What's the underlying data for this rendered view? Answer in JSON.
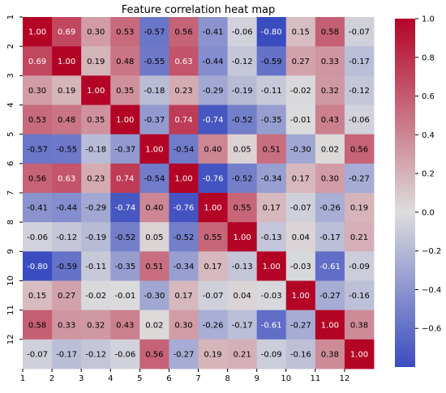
{
  "chart_data": {
    "type": "heatmap",
    "title": "Feature correlation heat map",
    "xlabel": "",
    "ylabel": "",
    "categories": [
      "1",
      "2",
      "3",
      "4",
      "5",
      "6",
      "7",
      "8",
      "9",
      "10",
      "11",
      "12"
    ],
    "values": [
      [
        1.0,
        0.69,
        0.3,
        0.53,
        -0.57,
        0.56,
        -0.41,
        -0.06,
        -0.8,
        0.15,
        0.58,
        -0.07
      ],
      [
        0.69,
        1.0,
        0.19,
        0.48,
        -0.55,
        0.63,
        -0.44,
        -0.12,
        -0.59,
        0.27,
        0.33,
        -0.17
      ],
      [
        0.3,
        0.19,
        1.0,
        0.35,
        -0.18,
        0.23,
        -0.29,
        -0.19,
        -0.11,
        -0.02,
        0.32,
        -0.12
      ],
      [
        0.53,
        0.48,
        0.35,
        1.0,
        -0.37,
        0.74,
        -0.74,
        -0.52,
        -0.35,
        -0.01,
        0.43,
        -0.06
      ],
      [
        -0.57,
        -0.55,
        -0.18,
        -0.37,
        1.0,
        -0.54,
        0.4,
        0.05,
        0.51,
        -0.3,
        0.02,
        0.56
      ],
      [
        0.56,
        0.63,
        0.23,
        0.74,
        -0.54,
        1.0,
        -0.76,
        -0.52,
        -0.34,
        0.17,
        0.3,
        -0.27
      ],
      [
        -0.41,
        -0.44,
        -0.29,
        -0.74,
        0.4,
        -0.76,
        1.0,
        0.55,
        0.17,
        -0.07,
        -0.26,
        0.19
      ],
      [
        -0.06,
        -0.12,
        -0.19,
        -0.52,
        0.05,
        -0.52,
        0.55,
        1.0,
        -0.13,
        0.04,
        -0.17,
        0.21
      ],
      [
        -0.8,
        -0.59,
        -0.11,
        -0.35,
        0.51,
        -0.34,
        0.17,
        -0.13,
        1.0,
        -0.03,
        -0.61,
        -0.09
      ],
      [
        0.15,
        0.27,
        -0.02,
        -0.01,
        -0.3,
        0.17,
        -0.07,
        0.04,
        -0.03,
        1.0,
        -0.27,
        -0.16
      ],
      [
        0.58,
        0.33,
        0.32,
        0.43,
        0.02,
        0.3,
        -0.26,
        -0.17,
        -0.61,
        -0.27,
        1.0,
        0.38
      ],
      [
        -0.07,
        -0.17,
        -0.12,
        -0.06,
        0.56,
        -0.27,
        0.19,
        0.21,
        -0.09,
        -0.16,
        0.38,
        1.0
      ]
    ],
    "colorbar": {
      "range": [
        -0.8,
        1.0
      ],
      "ticks": [
        -0.6,
        -0.4,
        -0.2,
        0.0,
        0.2,
        0.4,
        0.6,
        0.8,
        1.0
      ],
      "tick_labels": [
        "−0.6",
        "−0.4",
        "−0.2",
        "0.0",
        "0.2",
        "0.4",
        "0.6",
        "0.8",
        "1.0"
      ],
      "colormap": "coolwarm",
      "color_low": "#3b4cc0",
      "color_mid": "#dddddd",
      "color_high": "#b40426"
    },
    "grid": false,
    "legend": "colorbar-right"
  }
}
